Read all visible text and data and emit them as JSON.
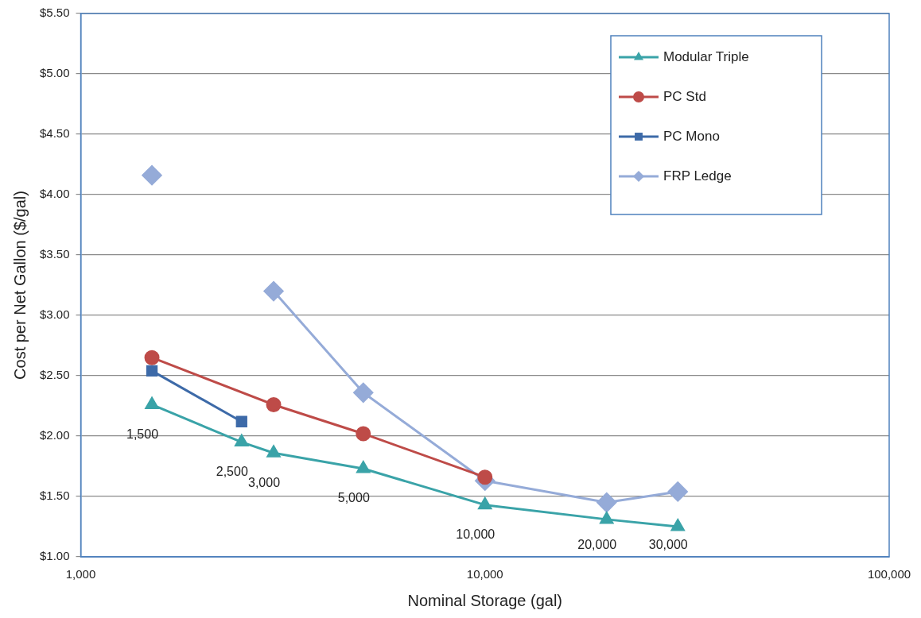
{
  "chart_data": {
    "type": "line",
    "xlabel": "Nominal Storage (gal)",
    "ylabel": "Cost per Net Gallon ($/gal)",
    "log": "x",
    "grid": "y",
    "legend": "top right",
    "xlim": [
      1000,
      100000
    ],
    "xticks": [
      {
        "value": 1000,
        "label": "1,000"
      },
      {
        "value": 10000,
        "label": "10,000"
      },
      {
        "value": 100000,
        "label": "100,000"
      }
    ],
    "ylim": [
      1,
      5.5
    ],
    "yticks": [
      {
        "value": 1,
        "label": "$1.00"
      },
      {
        "value": 1.5,
        "label": "$1.50"
      },
      {
        "value": 2,
        "label": "$2.00"
      },
      {
        "value": 2.5,
        "label": "$2.50"
      },
      {
        "value": 3,
        "label": "$3.00"
      },
      {
        "value": 3.5,
        "label": "$3.50"
      },
      {
        "value": 4,
        "label": "$4.00"
      },
      {
        "value": 4.5,
        "label": "$4.50"
      },
      {
        "value": 5,
        "label": "$5.00"
      },
      {
        "value": 5.5,
        "label": "$5.50"
      }
    ],
    "series": [
      {
        "name": "Modular Triple",
        "color": "#3aa3a8",
        "marker": "triangle",
        "x": [
          1500,
          2500,
          3000,
          5000,
          10000,
          20000,
          30000
        ],
        "values": [
          2.26,
          1.95,
          1.86,
          1.73,
          1.43,
          1.31,
          1.25
        ]
      },
      {
        "name": "PC Std",
        "color": "#be4b48",
        "marker": "circle",
        "x": [
          1500,
          3000,
          5000,
          10000
        ],
        "values": [
          2.65,
          2.26,
          2.02,
          1.66
        ]
      },
      {
        "name": "PC Mono",
        "color": "#3d6aa8",
        "marker": "square",
        "x": [
          1500,
          2500
        ],
        "values": [
          2.54,
          2.12
        ]
      },
      {
        "name": "FRP Ledge",
        "color": "#95abd8",
        "marker": "diamond",
        "x": [
          1500,
          2000,
          3000,
          5000,
          10000,
          20000,
          30000
        ],
        "values": [
          4.16,
          null,
          3.2,
          2.36,
          1.63,
          1.45,
          1.54
        ]
      }
    ],
    "annotations": [
      {
        "text": "1,500",
        "x": 1500,
        "y": 2.26
      },
      {
        "text": "2,500",
        "x": 2500,
        "y": 1.95
      },
      {
        "text": "3,000",
        "x": 3000,
        "y": 1.86
      },
      {
        "text": "5,000",
        "x": 5000,
        "y": 1.73
      },
      {
        "text": "10,000",
        "x": 10000,
        "y": 1.43
      },
      {
        "text": "20,000",
        "x": 20000,
        "y": 1.31
      },
      {
        "text": "30,000",
        "x": 30000,
        "y": 1.25
      }
    ]
  }
}
